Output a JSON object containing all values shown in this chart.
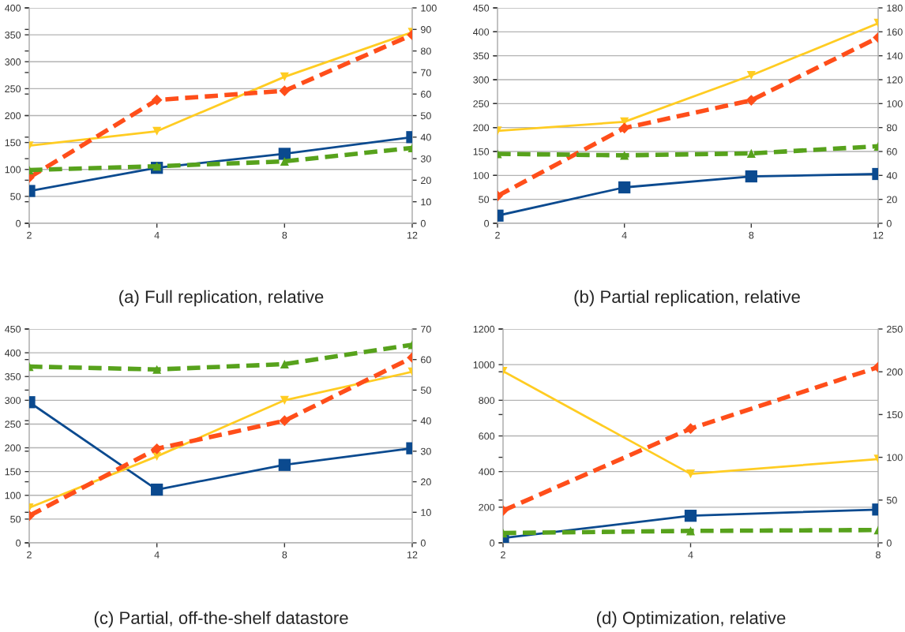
{
  "chart_data": [
    {
      "type": "line",
      "title": "(a) Full replication, relative",
      "categories": [
        "2",
        "4",
        "8",
        "12"
      ],
      "ylim": [
        0,
        400
      ],
      "yticks": [
        0,
        50,
        100,
        150,
        200,
        250,
        300,
        350,
        400
      ],
      "y2lim": [
        0,
        100
      ],
      "y2ticks": [
        0,
        10,
        20,
        30,
        40,
        50,
        60,
        70,
        80,
        90,
        100
      ],
      "grid": "y",
      "series": [
        {
          "color": "#0b4a8f",
          "marker": "square",
          "line_style": "solid",
          "values": [
            60,
            103,
            129,
            160
          ]
        },
        {
          "color": "#ffcc22",
          "marker": "triangle_down",
          "line_style": "solid",
          "values": [
            144,
            171,
            272,
            355
          ]
        },
        {
          "color": "#ff4e1a",
          "marker": "diamond",
          "line_style": "dashed",
          "values": [
            85,
            229,
            246,
            350
          ]
        },
        {
          "color": "#57a21c",
          "marker": "triangle",
          "line_style": "dashed",
          "values": [
            99,
            106,
            115,
            140
          ]
        }
      ]
    },
    {
      "type": "line",
      "title": "(b) Partial replication, relative",
      "categories": [
        "2",
        "4",
        "8",
        "12"
      ],
      "ylim": [
        0,
        450
      ],
      "yticks": [
        0,
        50,
        100,
        150,
        200,
        250,
        300,
        350,
        400,
        450
      ],
      "y2lim": [
        0,
        180
      ],
      "y2ticks": [
        0,
        20,
        40,
        60,
        80,
        100,
        120,
        140,
        160,
        180
      ],
      "grid": "y",
      "series": [
        {
          "color": "#0b4a8f",
          "marker": "square",
          "line_style": "solid",
          "values": [
            16,
            75,
            98,
            103
          ]
        },
        {
          "color": "#ffcc22",
          "marker": "triangle_down",
          "line_style": "solid",
          "values": [
            193,
            212,
            309,
            418
          ]
        },
        {
          "color": "#ff4e1a",
          "marker": "diamond",
          "line_style": "dashed",
          "values": [
            57,
            199,
            257,
            388
          ]
        },
        {
          "color": "#57a21c",
          "marker": "triangle",
          "line_style": "dashed",
          "values": [
            145,
            142,
            146,
            161
          ]
        }
      ]
    },
    {
      "type": "line",
      "title": "(c) Partial, off-the-shelf datastore",
      "categories": [
        "2",
        "4",
        "8",
        "12"
      ],
      "ylim": [
        0,
        450
      ],
      "yticks": [
        0,
        50,
        100,
        150,
        200,
        250,
        300,
        350,
        400,
        450
      ],
      "y2lim": [
        0,
        70
      ],
      "y2ticks": [
        0,
        10,
        20,
        30,
        40,
        50,
        60,
        70
      ],
      "grid": "y",
      "series": [
        {
          "color": "#0b4a8f",
          "marker": "square",
          "line_style": "solid",
          "values": [
            296,
            112,
            164,
            199
          ]
        },
        {
          "color": "#ffcc22",
          "marker": "triangle_down",
          "line_style": "solid",
          "values": [
            74,
            182,
            300,
            360
          ]
        },
        {
          "color": "#ff4e1a",
          "marker": "diamond",
          "line_style": "dashed",
          "values": [
            57,
            198,
            257,
            390
          ]
        },
        {
          "color": "#57a21c",
          "marker": "triangle",
          "line_style": "dashed",
          "values": [
            371,
            365,
            376,
            417
          ]
        }
      ]
    },
    {
      "type": "line",
      "title": "(d) Optimization, relative",
      "categories": [
        "2",
        "4",
        "8"
      ],
      "ylim": [
        0,
        1200
      ],
      "yticks": [
        0,
        200,
        400,
        600,
        800,
        1000,
        1200
      ],
      "y2lim": [
        0,
        250
      ],
      "y2ticks": [
        0,
        50,
        100,
        150,
        200,
        250
      ],
      "grid": "y",
      "series": [
        {
          "color": "#0b4a8f",
          "marker": "square",
          "line_style": "solid",
          "values": [
            27,
            152,
            187
          ]
        },
        {
          "color": "#ffcc22",
          "marker": "triangle_down",
          "line_style": "solid",
          "values": [
            963,
            387,
            470
          ]
        },
        {
          "color": "#ff4e1a",
          "marker": "diamond",
          "line_style": "dashed",
          "values": [
            181,
            641,
            986
          ]
        },
        {
          "color": "#57a21c",
          "marker": "triangle",
          "line_style": "dashed",
          "values": [
            55,
            67,
            72
          ]
        }
      ]
    }
  ]
}
